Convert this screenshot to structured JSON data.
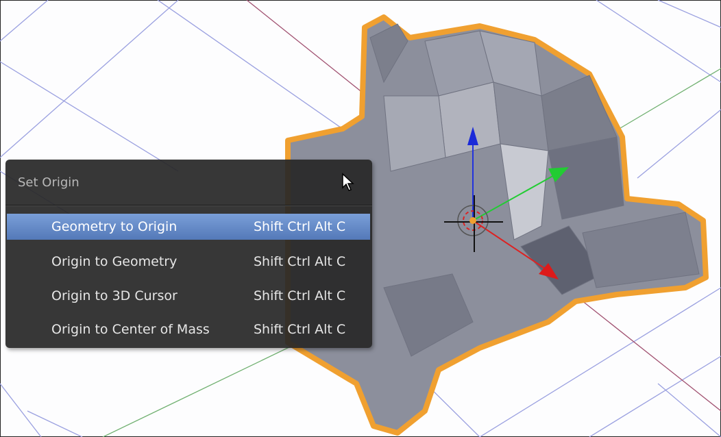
{
  "menu": {
    "title": "Set Origin",
    "items": [
      {
        "label": "Geometry to Origin",
        "shortcut": "Shift Ctrl Alt C"
      },
      {
        "label": "Origin to Geometry",
        "shortcut": "Shift Ctrl Alt C"
      },
      {
        "label": "Origin to 3D Cursor",
        "shortcut": "Shift Ctrl Alt C"
      },
      {
        "label": "Origin to Center of Mass",
        "shortcut": "Shift Ctrl Alt C"
      }
    ]
  }
}
